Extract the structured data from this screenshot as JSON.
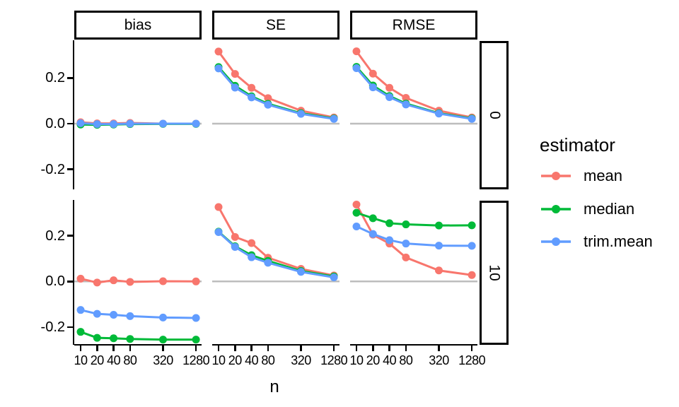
{
  "figure": {
    "x_axis_title": "n",
    "y_tick_labels": [
      "0.2",
      "0.0",
      "-0.2"
    ],
    "x_tick_labels": [
      "10",
      "20",
      "40",
      "80",
      "320",
      "1280"
    ]
  },
  "chart_data": {
    "type": "line",
    "x": [
      10,
      20,
      40,
      80,
      320,
      1280
    ],
    "x_scale": "log10",
    "xlabel": "n",
    "ylim": [
      -0.29,
      0.37
    ],
    "y_ticks": [
      0.2,
      0.0,
      -0.2
    ],
    "y_tick_labels": [
      "0.2",
      "0.0",
      "-0.2"
    ],
    "x_tick_labels": [
      "10",
      "20",
      "40",
      "80",
      "320",
      "1280"
    ],
    "reference_line_y": 0,
    "reference_line_color": "#BDBDBD",
    "grid": "off",
    "facet": {
      "columns": [
        "bias",
        "SE",
        "RMSE"
      ],
      "rows": [
        "0",
        "10"
      ]
    },
    "legend": {
      "title": "estimator",
      "position": "right",
      "entries": [
        {
          "label": "mean",
          "color": "#F8766D"
        },
        {
          "label": "median",
          "color": "#00BA38"
        },
        {
          "label": "trim.mean",
          "color": "#619CFF"
        }
      ]
    },
    "series_colors": {
      "mean": "#F8766D",
      "median": "#00BA38",
      "trim.mean": "#619CFF"
    },
    "panels": [
      {
        "row": "0",
        "col": "bias",
        "series": [
          {
            "name": "mean",
            "values": [
              0.006,
              0.001,
              0.001,
              0.003,
              0.0,
              0.0
            ]
          },
          {
            "name": "median",
            "values": [
              -0.004,
              -0.005,
              -0.004,
              -0.002,
              -0.001,
              -0.001
            ]
          },
          {
            "name": "trim.mean",
            "values": [
              0.002,
              -0.002,
              -0.002,
              0.0,
              0.0,
              0.0
            ]
          }
        ]
      },
      {
        "row": "0",
        "col": "SE",
        "series": [
          {
            "name": "mean",
            "values": [
              0.316,
              0.218,
              0.157,
              0.112,
              0.057,
              0.027
            ]
          },
          {
            "name": "median",
            "values": [
              0.248,
              0.166,
              0.12,
              0.087,
              0.046,
              0.023
            ]
          },
          {
            "name": "trim.mean",
            "values": [
              0.242,
              0.158,
              0.115,
              0.083,
              0.043,
              0.021
            ]
          }
        ]
      },
      {
        "row": "0",
        "col": "RMSE",
        "series": [
          {
            "name": "mean",
            "values": [
              0.317,
              0.219,
              0.157,
              0.113,
              0.057,
              0.027
            ]
          },
          {
            "name": "median",
            "values": [
              0.249,
              0.167,
              0.121,
              0.088,
              0.046,
              0.023
            ]
          },
          {
            "name": "trim.mean",
            "values": [
              0.243,
              0.159,
              0.116,
              0.084,
              0.044,
              0.021
            ]
          }
        ]
      },
      {
        "row": "10",
        "col": "bias",
        "series": [
          {
            "name": "mean",
            "values": [
              0.012,
              -0.005,
              0.005,
              -0.002,
              0.001,
              0.0
            ]
          },
          {
            "name": "median",
            "values": [
              -0.221,
              -0.247,
              -0.249,
              -0.252,
              -0.255,
              -0.255
            ]
          },
          {
            "name": "trim.mean",
            "values": [
              -0.125,
              -0.142,
              -0.146,
              -0.152,
              -0.158,
              -0.16
            ]
          }
        ]
      },
      {
        "row": "10",
        "col": "SE",
        "series": [
          {
            "name": "mean",
            "values": [
              0.326,
              0.195,
              0.168,
              0.104,
              0.055,
              0.026
            ]
          },
          {
            "name": "median",
            "values": [
              0.218,
              0.154,
              0.115,
              0.09,
              0.046,
              0.022
            ]
          },
          {
            "name": "trim.mean",
            "values": [
              0.216,
              0.151,
              0.106,
              0.082,
              0.042,
              0.018
            ]
          }
        ]
      },
      {
        "row": "10",
        "col": "RMSE",
        "series": [
          {
            "name": "mean",
            "values": [
              0.337,
              0.205,
              0.166,
              0.105,
              0.048,
              0.028
            ]
          },
          {
            "name": "median",
            "values": [
              0.301,
              0.277,
              0.255,
              0.25,
              0.245,
              0.246
            ]
          },
          {
            "name": "trim.mean",
            "values": [
              0.241,
              0.208,
              0.181,
              0.166,
              0.157,
              0.156
            ]
          }
        ]
      }
    ]
  }
}
